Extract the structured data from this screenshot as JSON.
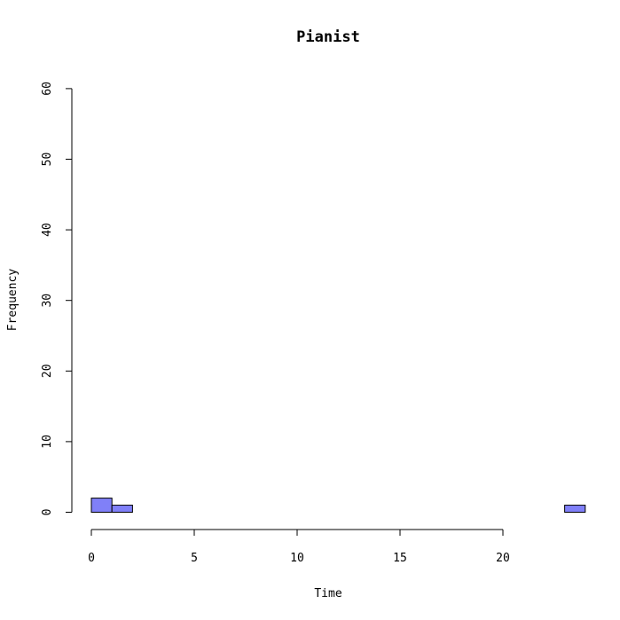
{
  "chart_data": {
    "type": "bar",
    "title": "Pianist",
    "xlabel": "Time",
    "ylabel": "Frequency",
    "xlim": [
      0,
      24
    ],
    "ylim": [
      0,
      60
    ],
    "x_ticks": [
      "0",
      "5",
      "10",
      "15",
      "20"
    ],
    "y_ticks": [
      "0",
      "10",
      "20",
      "30",
      "40",
      "50",
      "60"
    ],
    "bar_color": "#8080f8",
    "bins": [
      {
        "x0": 0,
        "x1": 1,
        "count": 2
      },
      {
        "x0": 1,
        "x1": 2,
        "count": 1
      },
      {
        "x0": 2,
        "x1": 3,
        "count": 0
      },
      {
        "x0": 3,
        "x1": 4,
        "count": 0
      },
      {
        "x0": 4,
        "x1": 5,
        "count": 0
      },
      {
        "x0": 5,
        "x1": 6,
        "count": 0
      },
      {
        "x0": 6,
        "x1": 7,
        "count": 0
      },
      {
        "x0": 7,
        "x1": 8,
        "count": 0
      },
      {
        "x0": 8,
        "x1": 9,
        "count": 0
      },
      {
        "x0": 9,
        "x1": 10,
        "count": 0
      },
      {
        "x0": 10,
        "x1": 11,
        "count": 0
      },
      {
        "x0": 11,
        "x1": 12,
        "count": 0
      },
      {
        "x0": 12,
        "x1": 13,
        "count": 0
      },
      {
        "x0": 13,
        "x1": 14,
        "count": 0
      },
      {
        "x0": 14,
        "x1": 15,
        "count": 0
      },
      {
        "x0": 15,
        "x1": 16,
        "count": 0
      },
      {
        "x0": 16,
        "x1": 17,
        "count": 0
      },
      {
        "x0": 17,
        "x1": 18,
        "count": 0
      },
      {
        "x0": 18,
        "x1": 19,
        "count": 0
      },
      {
        "x0": 19,
        "x1": 20,
        "count": 0
      },
      {
        "x0": 20,
        "x1": 21,
        "count": 0
      },
      {
        "x0": 21,
        "x1": 22,
        "count": 0
      },
      {
        "x0": 22,
        "x1": 23,
        "count": 0
      },
      {
        "x0": 23,
        "x1": 24,
        "count": 1
      }
    ]
  }
}
